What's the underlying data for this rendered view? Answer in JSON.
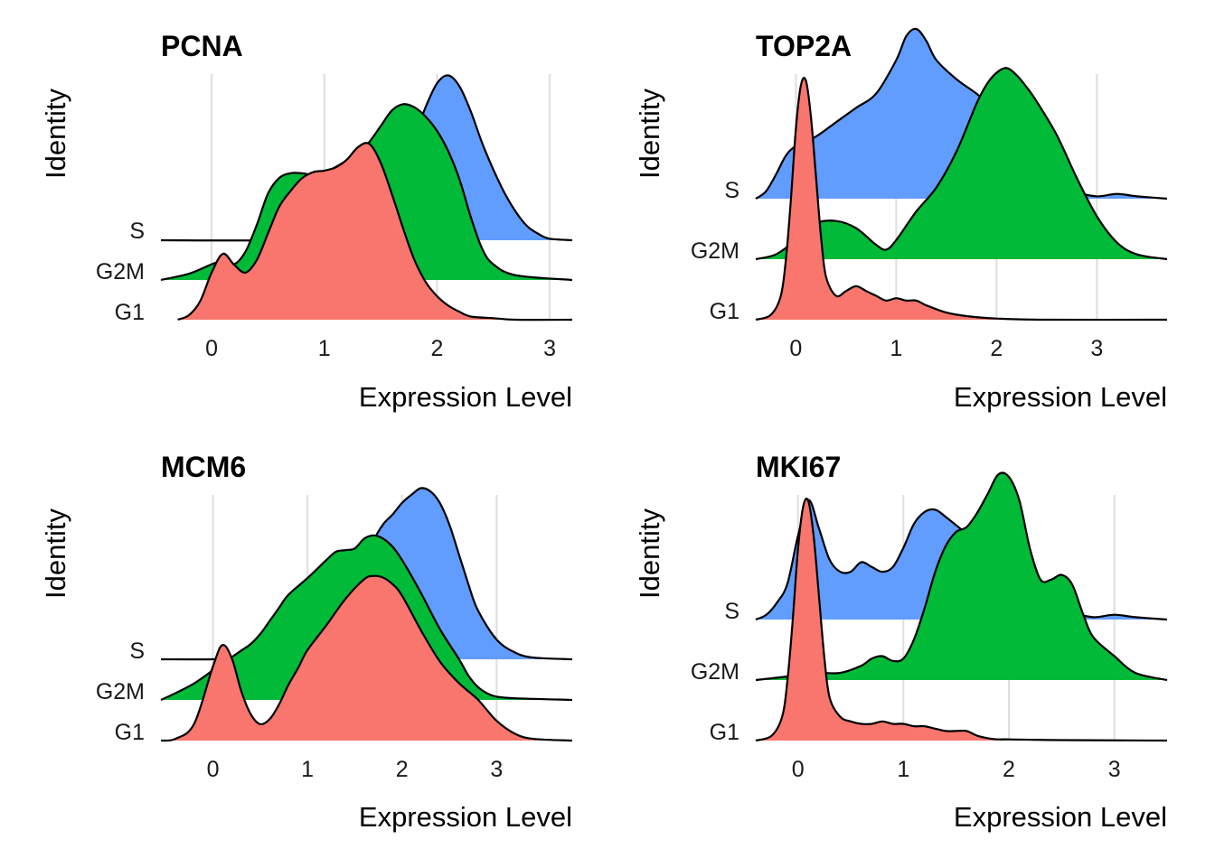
{
  "chart_data": [
    {
      "type": "area",
      "title": "PCNA",
      "xlabel": "Expression Level",
      "ylabel": "Identity",
      "xticks": [
        0,
        1,
        2,
        3
      ],
      "xlim": [
        -0.45,
        3.2
      ],
      "categories": [
        "G1",
        "G2M",
        "S"
      ],
      "grid": "vertical",
      "series": [
        {
          "name": "G1",
          "color": "#F8766D",
          "x": [
            -0.3,
            -0.2,
            -0.1,
            0,
            0.1,
            0.2,
            0.3,
            0.4,
            0.5,
            0.6,
            0.7,
            0.8,
            0.9,
            1,
            1.1,
            1.2,
            1.3,
            1.4,
            1.5,
            1.6,
            1.7,
            1.8,
            1.9,
            2,
            2.1,
            2.2,
            2.3,
            2.5,
            2.7,
            3.2
          ],
          "y": [
            0,
            0.03,
            0.12,
            0.3,
            0.42,
            0.35,
            0.3,
            0.38,
            0.55,
            0.72,
            0.82,
            0.9,
            0.94,
            0.95,
            0.97,
            1.02,
            1.1,
            1.12,
            1.0,
            0.8,
            0.58,
            0.38,
            0.24,
            0.15,
            0.09,
            0.05,
            0.02,
            0.01,
            0,
            0
          ]
        },
        {
          "name": "G2M",
          "color": "#00BA38",
          "x": [
            -0.45,
            -0.2,
            0,
            0.1,
            0.2,
            0.3,
            0.4,
            0.5,
            0.6,
            0.7,
            0.8,
            0.9,
            1,
            1.1,
            1.2,
            1.3,
            1.4,
            1.5,
            1.6,
            1.7,
            1.8,
            1.9,
            2,
            2.1,
            2.2,
            2.3,
            2.4,
            2.5,
            2.7,
            3.2
          ],
          "y": [
            0,
            0.04,
            0.1,
            0.12,
            0.1,
            0.18,
            0.35,
            0.55,
            0.65,
            0.68,
            0.68,
            0.67,
            0.68,
            0.72,
            0.76,
            0.8,
            0.88,
            0.98,
            1.08,
            1.12,
            1.1,
            1.04,
            0.95,
            0.82,
            0.64,
            0.4,
            0.2,
            0.1,
            0.03,
            0
          ]
        },
        {
          "name": "S",
          "color": "#619CFF",
          "x": [
            -0.45,
            0.5,
            0.8,
            1,
            1.2,
            1.4,
            1.6,
            1.8,
            1.9,
            2,
            2.1,
            2.2,
            2.3,
            2.4,
            2.5,
            2.6,
            2.7,
            2.8,
            2.9,
            3.0,
            3.2
          ],
          "y": [
            0,
            0,
            0.02,
            0.06,
            0.16,
            0.28,
            0.45,
            0.67,
            0.85,
            1.0,
            1.05,
            0.98,
            0.82,
            0.62,
            0.45,
            0.3,
            0.18,
            0.09,
            0.04,
            0.01,
            0
          ]
        }
      ]
    },
    {
      "type": "area",
      "title": "TOP2A",
      "xlabel": "Expression Level",
      "ylabel": "Identity",
      "xticks": [
        0,
        1,
        2,
        3
      ],
      "xlim": [
        -0.4,
        3.7
      ],
      "categories": [
        "G1",
        "G2M",
        "S"
      ],
      "grid": "vertical",
      "series": [
        {
          "name": "G1",
          "color": "#F8766D",
          "x": [
            -0.4,
            -0.25,
            -0.15,
            -0.1,
            -0.05,
            0,
            0.05,
            0.1,
            0.15,
            0.2,
            0.25,
            0.3,
            0.4,
            0.5,
            0.6,
            0.7,
            0.8,
            0.9,
            1.0,
            1.1,
            1.2,
            1.3,
            1.5,
            1.7,
            2.0,
            2.5,
            3.7
          ],
          "y": [
            0,
            0.02,
            0.1,
            0.25,
            0.5,
            0.8,
            0.98,
            1.0,
            0.85,
            0.6,
            0.35,
            0.18,
            0.1,
            0.12,
            0.14,
            0.12,
            0.1,
            0.08,
            0.09,
            0.08,
            0.08,
            0.06,
            0.03,
            0.015,
            0.005,
            0,
            0
          ]
        },
        {
          "name": "G2M",
          "color": "#00BA38",
          "x": [
            -0.4,
            -0.2,
            0,
            0.2,
            0.4,
            0.6,
            0.8,
            0.9,
            1.0,
            1.2,
            1.4,
            1.6,
            1.8,
            1.9,
            2.0,
            2.1,
            2.2,
            2.3,
            2.4,
            2.6,
            2.8,
            3.0,
            3.2,
            3.4,
            3.7
          ],
          "y": [
            0,
            0.02,
            0.08,
            0.15,
            0.16,
            0.13,
            0.06,
            0.04,
            0.08,
            0.2,
            0.3,
            0.45,
            0.65,
            0.73,
            0.78,
            0.8,
            0.77,
            0.72,
            0.66,
            0.52,
            0.34,
            0.18,
            0.07,
            0.02,
            0
          ]
        },
        {
          "name": "S",
          "color": "#619CFF",
          "x": [
            -0.4,
            -0.3,
            -0.2,
            -0.1,
            0,
            0.2,
            0.4,
            0.6,
            0.8,
            1.0,
            1.1,
            1.2,
            1.3,
            1.4,
            1.6,
            1.8,
            2.0,
            2.2,
            2.4,
            2.6,
            2.8,
            3.0,
            3.2,
            3.4,
            3.7
          ],
          "y": [
            0,
            0.03,
            0.1,
            0.18,
            0.22,
            0.26,
            0.32,
            0.38,
            0.44,
            0.58,
            0.68,
            0.71,
            0.66,
            0.58,
            0.5,
            0.44,
            0.37,
            0.29,
            0.19,
            0.09,
            0.03,
            0.01,
            0.02,
            0.01,
            0
          ]
        }
      ]
    },
    {
      "type": "area",
      "title": "MCM6",
      "xlabel": "Expression Level",
      "ylabel": "Identity",
      "xticks": [
        0,
        1,
        2,
        3
      ],
      "xlim": [
        -0.55,
        3.8
      ],
      "categories": [
        "G1",
        "G2M",
        "S"
      ],
      "grid": "vertical",
      "series": [
        {
          "name": "G1",
          "color": "#F8766D",
          "x": [
            -0.55,
            -0.4,
            -0.2,
            0,
            0.1,
            0.2,
            0.3,
            0.4,
            0.5,
            0.6,
            0.7,
            0.8,
            0.9,
            1.0,
            1.2,
            1.4,
            1.6,
            1.7,
            1.8,
            1.9,
            2.0,
            2.2,
            2.4,
            2.6,
            2.8,
            3.0,
            3.2,
            3.4,
            3.8
          ],
          "y": [
            0,
            0.01,
            0.1,
            0.45,
            0.58,
            0.5,
            0.3,
            0.16,
            0.1,
            0.13,
            0.22,
            0.34,
            0.44,
            0.55,
            0.7,
            0.86,
            0.98,
            1.0,
            0.99,
            0.95,
            0.88,
            0.67,
            0.48,
            0.35,
            0.25,
            0.12,
            0.04,
            0.01,
            0
          ]
        },
        {
          "name": "G2M",
          "color": "#00BA38",
          "x": [
            -0.55,
            -0.4,
            -0.2,
            0,
            0.1,
            0.2,
            0.3,
            0.4,
            0.5,
            0.6,
            0.7,
            0.8,
            1.0,
            1.2,
            1.3,
            1.4,
            1.5,
            1.6,
            1.7,
            1.8,
            1.9,
            2.0,
            2.2,
            2.4,
            2.6,
            2.7,
            2.8,
            2.9,
            3.0,
            3.2,
            3.8
          ],
          "y": [
            0,
            0.04,
            0.1,
            0.18,
            0.22,
            0.26,
            0.3,
            0.34,
            0.4,
            0.48,
            0.56,
            0.64,
            0.74,
            0.85,
            0.9,
            0.91,
            0.92,
            0.98,
            1.0,
            0.98,
            0.93,
            0.85,
            0.65,
            0.43,
            0.25,
            0.15,
            0.08,
            0.04,
            0.02,
            0.01,
            0
          ]
        },
        {
          "name": "S",
          "color": "#619CFF",
          "x": [
            -0.55,
            0,
            0.2,
            0.4,
            0.6,
            0.8,
            1.0,
            1.2,
            1.4,
            1.5,
            1.6,
            1.7,
            1.8,
            1.9,
            2.0,
            2.1,
            2.2,
            2.3,
            2.4,
            2.5,
            2.6,
            2.7,
            2.8,
            3.0,
            3.2,
            3.4,
            3.8
          ],
          "y": [
            0,
            0,
            0.01,
            0.02,
            0.04,
            0.06,
            0.1,
            0.16,
            0.25,
            0.36,
            0.55,
            0.72,
            0.82,
            0.88,
            0.95,
            1.0,
            1.04,
            1.02,
            0.95,
            0.82,
            0.64,
            0.46,
            0.3,
            0.12,
            0.04,
            0.01,
            0
          ]
        }
      ]
    },
    {
      "type": "area",
      "title": "MKI67",
      "xlabel": "Expression Level",
      "ylabel": "Identity",
      "xticks": [
        0,
        1,
        2,
        3
      ],
      "xlim": [
        -0.4,
        3.5
      ],
      "categories": [
        "G1",
        "G2M",
        "S"
      ],
      "grid": "vertical",
      "series": [
        {
          "name": "G1",
          "color": "#F8766D",
          "x": [
            -0.4,
            -0.25,
            -0.15,
            -0.1,
            -0.05,
            0,
            0.05,
            0.1,
            0.15,
            0.2,
            0.25,
            0.3,
            0.4,
            0.5,
            0.6,
            0.7,
            0.8,
            0.9,
            1.0,
            1.1,
            1.2,
            1.3,
            1.4,
            1.5,
            1.6,
            1.7,
            1.8,
            1.9,
            2.0,
            2.5,
            3.5
          ],
          "y": [
            0,
            0.02,
            0.1,
            0.25,
            0.5,
            0.8,
            0.98,
            1.0,
            0.85,
            0.6,
            0.35,
            0.18,
            0.1,
            0.08,
            0.07,
            0.07,
            0.08,
            0.07,
            0.07,
            0.06,
            0.06,
            0.05,
            0.04,
            0.04,
            0.04,
            0.02,
            0.01,
            0.005,
            0.005,
            0.002,
            0
          ]
        },
        {
          "name": "G2M",
          "color": "#00BA38",
          "x": [
            -0.4,
            -0.2,
            0,
            0.2,
            0.4,
            0.6,
            0.7,
            0.8,
            0.9,
            1.0,
            1.1,
            1.2,
            1.3,
            1.4,
            1.5,
            1.6,
            1.7,
            1.8,
            1.9,
            2.0,
            2.1,
            2.2,
            2.3,
            2.4,
            2.5,
            2.6,
            2.7,
            2.8,
            3.0,
            3.2,
            3.5
          ],
          "y": [
            0,
            0.01,
            0.02,
            0.03,
            0.03,
            0.06,
            0.09,
            0.1,
            0.08,
            0.09,
            0.17,
            0.3,
            0.45,
            0.56,
            0.62,
            0.64,
            0.7,
            0.78,
            0.86,
            0.85,
            0.75,
            0.55,
            0.42,
            0.42,
            0.44,
            0.4,
            0.28,
            0.18,
            0.1,
            0.03,
            0
          ]
        },
        {
          "name": "S",
          "color": "#619CFF",
          "x": [
            -0.4,
            -0.3,
            -0.2,
            -0.1,
            0,
            0.1,
            0.2,
            0.3,
            0.4,
            0.5,
            0.6,
            0.7,
            0.8,
            0.9,
            1.0,
            1.1,
            1.2,
            1.3,
            1.4,
            1.6,
            1.8,
            2.0,
            2.2,
            2.4,
            2.6,
            2.8,
            3.0,
            3.2,
            3.5
          ],
          "y": [
            0,
            0.02,
            0.07,
            0.15,
            0.35,
            0.5,
            0.38,
            0.25,
            0.2,
            0.2,
            0.24,
            0.22,
            0.2,
            0.22,
            0.3,
            0.4,
            0.45,
            0.46,
            0.43,
            0.36,
            0.3,
            0.22,
            0.14,
            0.07,
            0.03,
            0.01,
            0.02,
            0.01,
            0
          ]
        }
      ]
    }
  ]
}
